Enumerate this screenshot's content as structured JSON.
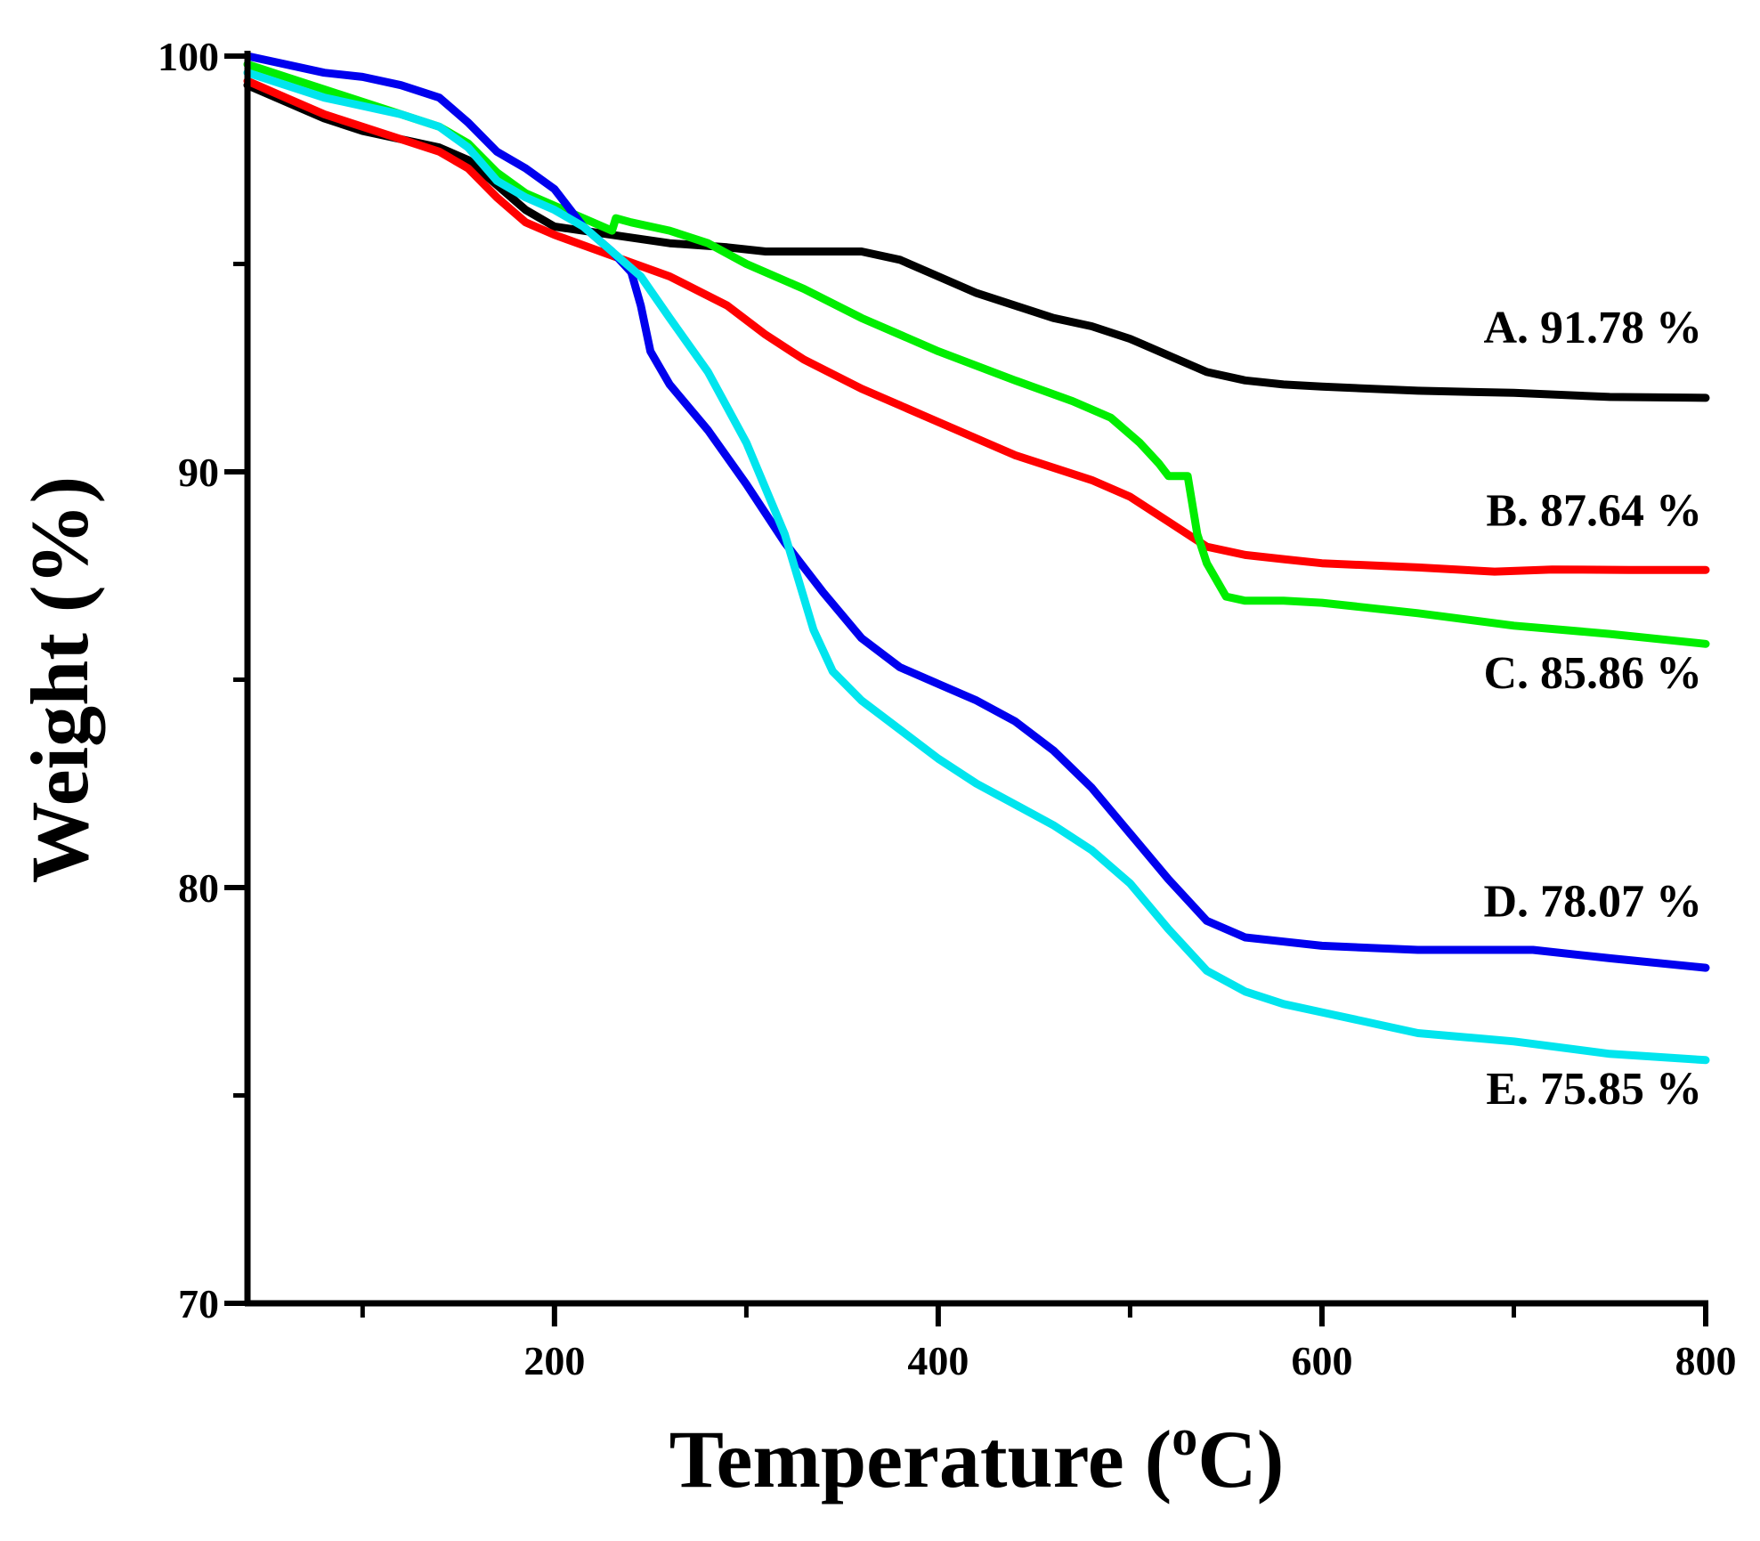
{
  "chart_data": {
    "type": "line",
    "xlabel": "Temperature (°C)",
    "xlabel_main": "Temperature (",
    "xlabel_sup": "o",
    "xlabel_end": "C)",
    "ylabel": "Weight (%)",
    "xlim": [
      40,
      800
    ],
    "ylim": [
      70,
      100
    ],
    "x_ticks": [
      200,
      400,
      600,
      800
    ],
    "x_minor_ticks": [
      100,
      300,
      500,
      700
    ],
    "y_ticks": [
      70,
      80,
      90,
      100
    ],
    "y_minor_ticks": [
      75,
      85,
      95
    ],
    "grid": false,
    "series": [
      {
        "name": "A. 91.78 %",
        "color": "#000000",
        "x": [
          40,
          60,
          80,
          100,
          120,
          140,
          155,
          170,
          185,
          200,
          230,
          260,
          290,
          310,
          330,
          360,
          380,
          400,
          420,
          440,
          460,
          480,
          500,
          520,
          540,
          560,
          580,
          600,
          650,
          700,
          750,
          800
        ],
        "y": [
          99.3,
          98.9,
          98.5,
          98.2,
          98.0,
          97.8,
          97.5,
          96.9,
          96.3,
          95.9,
          95.7,
          95.5,
          95.4,
          95.3,
          95.3,
          95.3,
          95.1,
          94.7,
          94.3,
          94.0,
          93.7,
          93.5,
          93.2,
          92.8,
          92.4,
          92.2,
          92.1,
          92.05,
          91.95,
          91.9,
          91.8,
          91.78
        ]
      },
      {
        "name": "B. 87.64 %",
        "color": "#ff0000",
        "x": [
          40,
          60,
          80,
          100,
          120,
          140,
          155,
          170,
          185,
          200,
          230,
          260,
          290,
          310,
          330,
          360,
          380,
          400,
          420,
          440,
          460,
          480,
          500,
          520,
          540,
          560,
          580,
          600,
          650,
          690,
          720,
          760,
          800
        ],
        "y": [
          99.4,
          99.0,
          98.6,
          98.3,
          98.0,
          97.7,
          97.3,
          96.6,
          96.0,
          95.7,
          95.2,
          94.7,
          94.0,
          93.3,
          92.7,
          92.0,
          91.6,
          91.2,
          90.8,
          90.4,
          90.1,
          89.8,
          89.4,
          88.8,
          88.2,
          88.0,
          87.9,
          87.8,
          87.7,
          87.6,
          87.65,
          87.64,
          87.64
        ]
      },
      {
        "name": "C. 85.86 %",
        "color": "#00ee00",
        "x": [
          40,
          60,
          80,
          100,
          120,
          140,
          155,
          170,
          185,
          200,
          220,
          230,
          232,
          240,
          260,
          280,
          300,
          330,
          360,
          400,
          440,
          470,
          490,
          505,
          515,
          520,
          530,
          535,
          540,
          550,
          560,
          580,
          600,
          650,
          700,
          750,
          800
        ],
        "y": [
          99.8,
          99.5,
          99.2,
          98.9,
          98.6,
          98.3,
          97.9,
          97.2,
          96.7,
          96.4,
          96.0,
          95.8,
          96.1,
          96.0,
          95.8,
          95.5,
          95.0,
          94.4,
          93.7,
          92.9,
          92.2,
          91.7,
          91.3,
          90.7,
          90.2,
          89.9,
          89.9,
          88.5,
          87.8,
          87.0,
          86.9,
          86.9,
          86.85,
          86.6,
          86.3,
          86.1,
          85.86
        ]
      },
      {
        "name": "D. 78.07 %",
        "color": "#0000ee",
        "x": [
          40,
          60,
          80,
          100,
          120,
          140,
          155,
          170,
          185,
          200,
          215,
          230,
          240,
          245,
          250,
          260,
          280,
          300,
          320,
          340,
          360,
          380,
          400,
          420,
          440,
          460,
          480,
          500,
          520,
          540,
          560,
          580,
          600,
          650,
          700,
          710,
          750,
          800
        ],
        "y": [
          100.0,
          99.8,
          99.6,
          99.5,
          99.3,
          99.0,
          98.4,
          97.7,
          97.3,
          96.8,
          95.9,
          95.3,
          94.8,
          94.0,
          92.9,
          92.1,
          91.0,
          89.7,
          88.3,
          87.1,
          86.0,
          85.3,
          84.9,
          84.5,
          84.0,
          83.3,
          82.4,
          81.3,
          80.2,
          79.2,
          78.8,
          78.7,
          78.6,
          78.5,
          78.5,
          78.5,
          78.3,
          78.07
        ]
      },
      {
        "name": "E. 75.85 %",
        "color": "#00e5ee",
        "x": [
          40,
          60,
          80,
          100,
          120,
          140,
          155,
          170,
          185,
          200,
          215,
          230,
          245,
          260,
          280,
          300,
          320,
          335,
          345,
          360,
          380,
          400,
          420,
          440,
          460,
          480,
          500,
          520,
          540,
          560,
          580,
          600,
          630,
          650,
          700,
          750,
          800
        ],
        "y": [
          99.6,
          99.3,
          99.0,
          98.8,
          98.6,
          98.3,
          97.8,
          97.0,
          96.6,
          96.3,
          95.9,
          95.3,
          94.7,
          93.7,
          92.4,
          90.7,
          88.5,
          86.2,
          85.2,
          84.5,
          83.8,
          83.1,
          82.5,
          82.0,
          81.5,
          80.9,
          80.1,
          79.0,
          78.0,
          77.5,
          77.2,
          77.0,
          76.7,
          76.5,
          76.3,
          76.0,
          75.85
        ]
      }
    ]
  }
}
